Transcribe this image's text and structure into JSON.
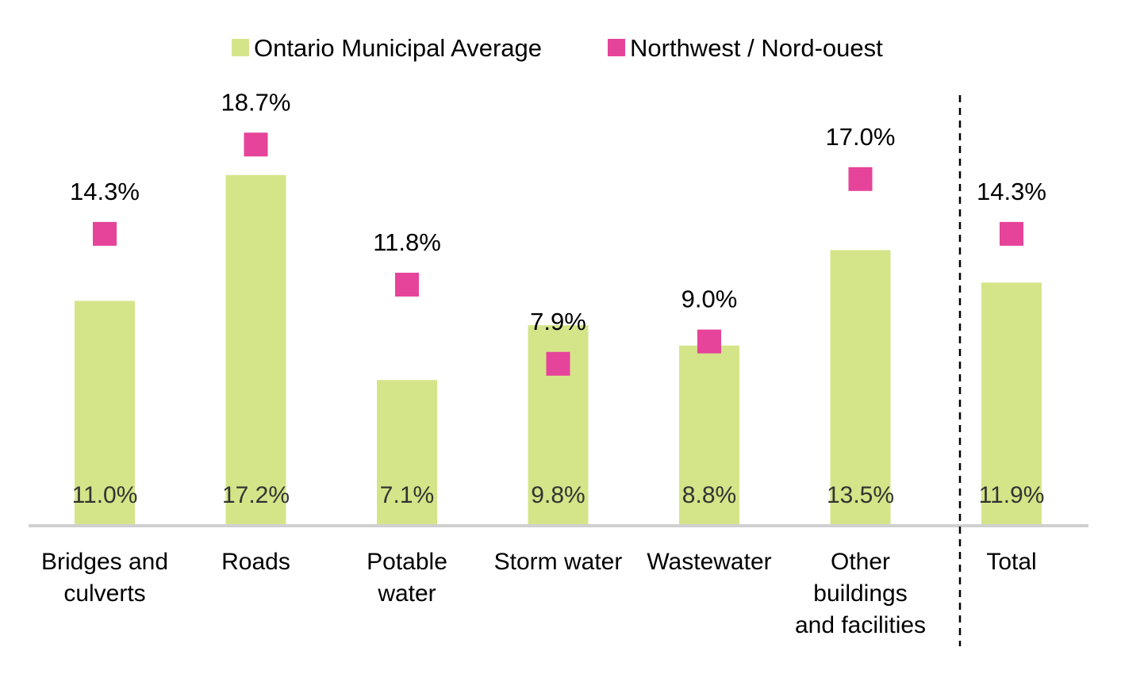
{
  "chart_data": {
    "type": "bar",
    "categories": [
      [
        "Bridges and",
        "culverts"
      ],
      [
        "Roads"
      ],
      [
        "Potable",
        "water"
      ],
      [
        "Storm water"
      ],
      [
        "Wastewater"
      ],
      [
        "Other",
        "buildings",
        "and facilities"
      ],
      [
        "Total"
      ]
    ],
    "series": [
      {
        "name": "Ontario Municipal Average",
        "kind": "bar",
        "color": "#d4e589",
        "values": [
          11.0,
          17.2,
          7.1,
          9.8,
          8.8,
          13.5,
          11.9
        ],
        "labels": [
          "11.0%",
          "17.2%",
          "7.1%",
          "9.8%",
          "8.8%",
          "13.5%",
          "11.9%"
        ]
      },
      {
        "name": "Northwest / Nord-ouest",
        "kind": "marker",
        "color": "#e6439a",
        "values": [
          14.3,
          18.7,
          11.8,
          7.9,
          9.0,
          17.0,
          14.3
        ],
        "labels": [
          "14.3%",
          "18.7%",
          "11.8%",
          "7.9%",
          "9.0%",
          "17.0%",
          "14.3%"
        ]
      }
    ],
    "ylim": [
      0,
      22
    ],
    "grid": false,
    "legend": "top-center",
    "separator_before_category": 6
  }
}
